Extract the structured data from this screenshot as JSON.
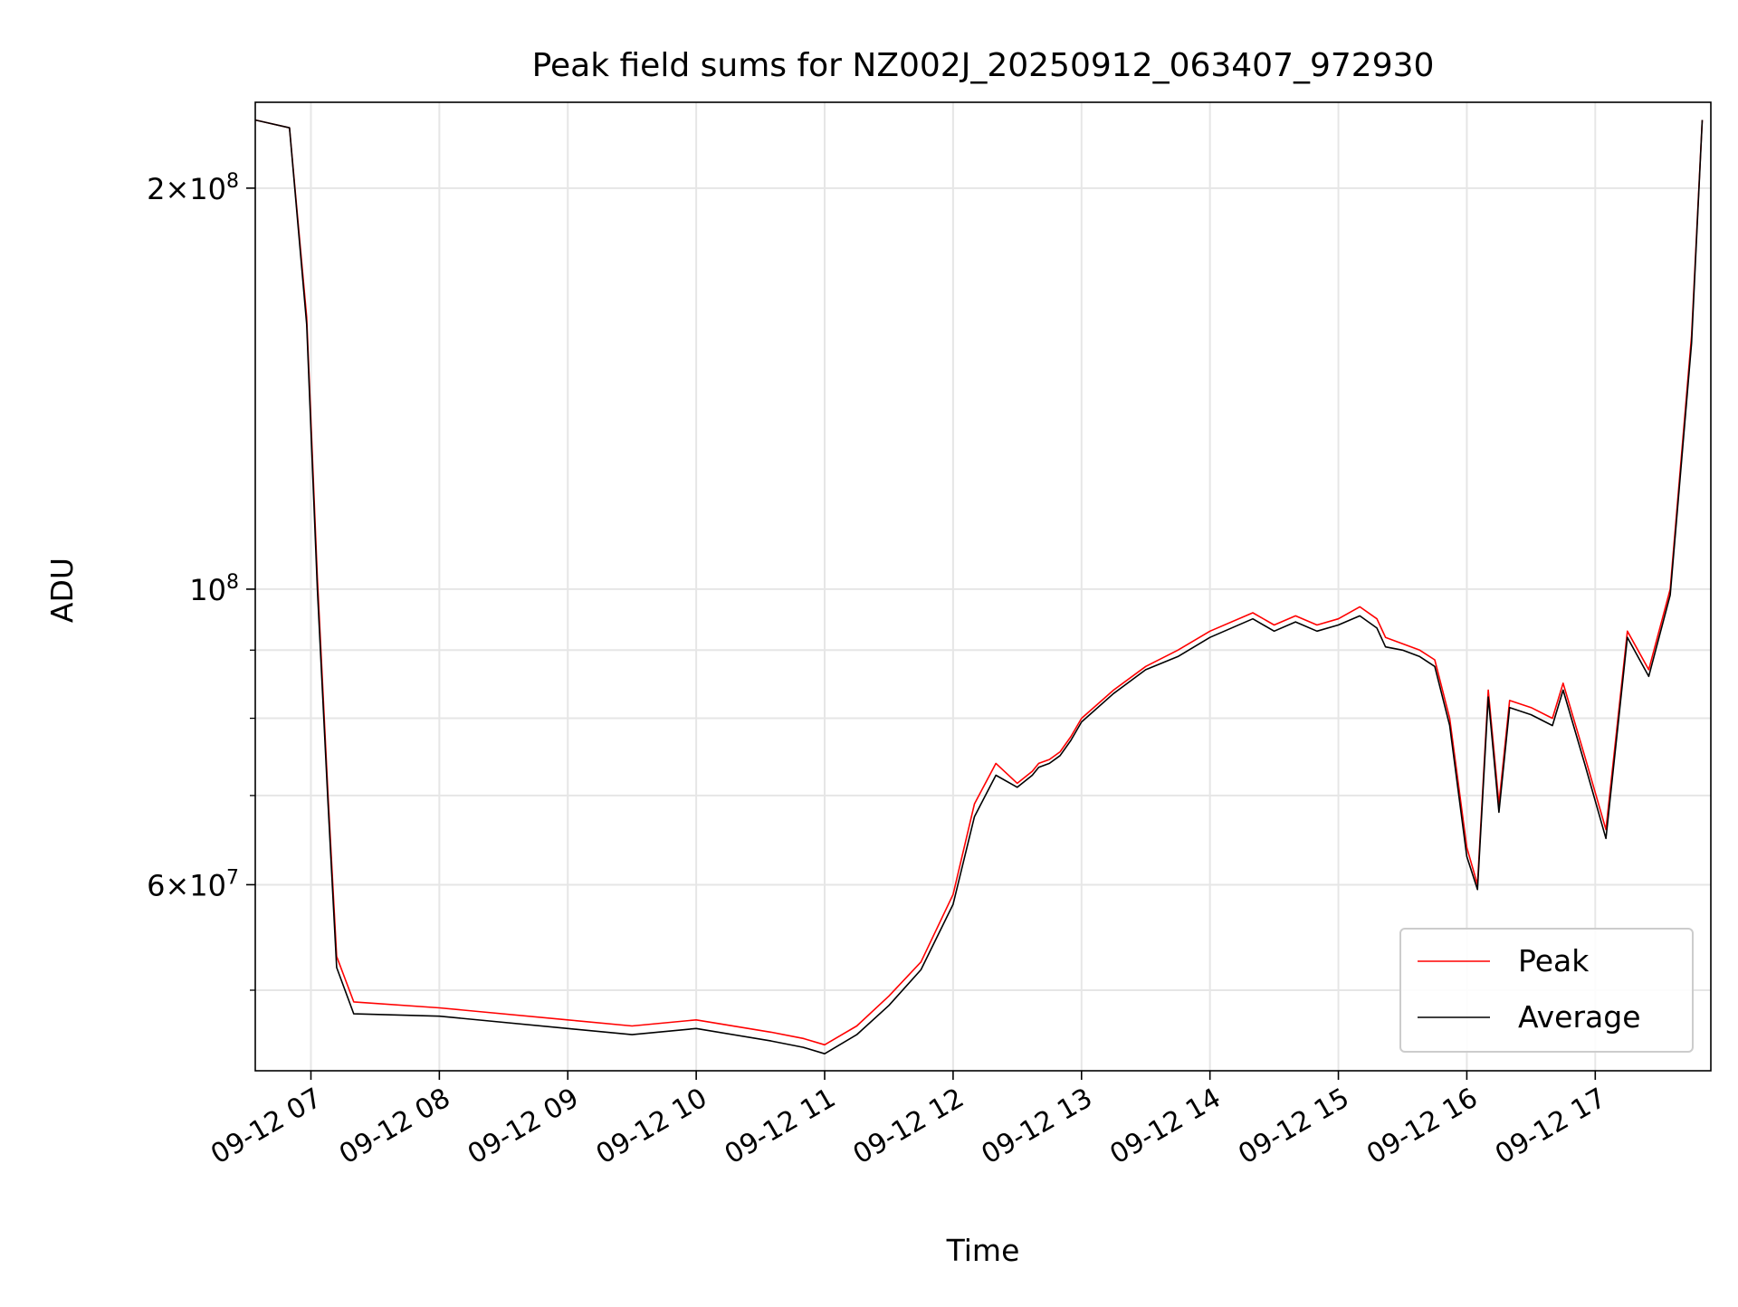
{
  "chart_data": {
    "type": "line",
    "title": "Peak field sums for NZ002J_20250912_063407_972930",
    "xlabel": "Time",
    "ylabel": "ADU",
    "yscale": "log",
    "xlim": [
      "2025-09-12 06:34",
      "2025-09-12 17:54"
    ],
    "ylim": [
      43500000,
      232000000
    ],
    "grid": true,
    "legend_position": "lower right",
    "x_tick_labels": [
      "09-12 07",
      "09-12 08",
      "09-12 09",
      "09-12 10",
      "09-12 11",
      "09-12 12",
      "09-12 13",
      "09-12 14",
      "09-12 15",
      "09-12 16",
      "09-12 17"
    ],
    "y_major_ticks": [
      {
        "value": 200000000,
        "mantissa": "2",
        "exponent": "8"
      },
      {
        "value": 100000000,
        "mantissa": "",
        "exponent": "8"
      },
      {
        "value": 60000000,
        "mantissa": "6",
        "exponent": "7"
      }
    ],
    "y_minor_ticks": [
      50000000,
      70000000,
      80000000,
      90000000
    ],
    "series": [
      {
        "name": "Peak",
        "color": "#ff0000",
        "x": [
          "2025-09-12 06:34",
          "2025-09-12 06:50",
          "2025-09-12 06:58",
          "2025-09-12 07:03",
          "2025-09-12 07:08",
          "2025-09-12 07:12",
          "2025-09-12 07:20",
          "2025-09-12 08:00",
          "2025-09-12 09:00",
          "2025-09-12 09:30",
          "2025-09-12 10:00",
          "2025-09-12 10:35",
          "2025-09-12 10:50",
          "2025-09-12 11:00",
          "2025-09-12 11:15",
          "2025-09-12 11:30",
          "2025-09-12 11:45",
          "2025-09-12 12:00",
          "2025-09-12 12:10",
          "2025-09-12 12:20",
          "2025-09-12 12:30",
          "2025-09-12 12:37",
          "2025-09-12 12:40",
          "2025-09-12 12:45",
          "2025-09-12 12:50",
          "2025-09-12 12:55",
          "2025-09-12 13:00",
          "2025-09-12 13:15",
          "2025-09-12 13:30",
          "2025-09-12 13:45",
          "2025-09-12 14:00",
          "2025-09-12 14:20",
          "2025-09-12 14:30",
          "2025-09-12 14:40",
          "2025-09-12 14:50",
          "2025-09-12 15:00",
          "2025-09-12 15:10",
          "2025-09-12 15:18",
          "2025-09-12 15:22",
          "2025-09-12 15:30",
          "2025-09-12 15:38",
          "2025-09-12 15:45",
          "2025-09-12 15:52",
          "2025-09-12 16:00",
          "2025-09-12 16:05",
          "2025-09-12 16:10",
          "2025-09-12 16:15",
          "2025-09-12 16:20",
          "2025-09-12 16:30",
          "2025-09-12 16:40",
          "2025-09-12 16:45",
          "2025-09-12 16:55",
          "2025-09-12 17:05",
          "2025-09-12 17:15",
          "2025-09-12 17:25",
          "2025-09-12 17:35",
          "2025-09-12 17:45",
          "2025-09-12 17:50"
        ],
        "y": [
          225000000,
          222000000,
          160000000,
          102000000,
          70000000,
          53000000,
          49000000,
          48500000,
          47500000,
          47000000,
          47500000,
          46500000,
          46000000,
          45500000,
          47000000,
          49500000,
          52500000,
          59000000,
          69000000,
          74000000,
          71500000,
          73000000,
          74000000,
          74500000,
          75500000,
          77500000,
          80000000,
          84000000,
          87500000,
          90000000,
          93000000,
          96000000,
          94000000,
          95500000,
          94000000,
          95000000,
          97000000,
          95000000,
          92000000,
          91000000,
          90000000,
          88500000,
          80000000,
          64000000,
          60000000,
          84000000,
          69000000,
          82500000,
          81500000,
          80000000,
          85000000,
          75000000,
          66000000,
          93000000,
          87000000,
          100000000,
          155000000,
          225000000
        ]
      },
      {
        "name": "Average",
        "color": "#000000",
        "x": [
          "2025-09-12 06:34",
          "2025-09-12 06:50",
          "2025-09-12 06:58",
          "2025-09-12 07:03",
          "2025-09-12 07:08",
          "2025-09-12 07:12",
          "2025-09-12 07:20",
          "2025-09-12 08:00",
          "2025-09-12 09:00",
          "2025-09-12 09:30",
          "2025-09-12 10:00",
          "2025-09-12 10:35",
          "2025-09-12 10:50",
          "2025-09-12 11:00",
          "2025-09-12 11:15",
          "2025-09-12 11:30",
          "2025-09-12 11:45",
          "2025-09-12 12:00",
          "2025-09-12 12:10",
          "2025-09-12 12:20",
          "2025-09-12 12:30",
          "2025-09-12 12:37",
          "2025-09-12 12:40",
          "2025-09-12 12:45",
          "2025-09-12 12:50",
          "2025-09-12 12:55",
          "2025-09-12 13:00",
          "2025-09-12 13:15",
          "2025-09-12 13:30",
          "2025-09-12 13:45",
          "2025-09-12 14:00",
          "2025-09-12 14:20",
          "2025-09-12 14:30",
          "2025-09-12 14:40",
          "2025-09-12 14:50",
          "2025-09-12 15:00",
          "2025-09-12 15:10",
          "2025-09-12 15:18",
          "2025-09-12 15:22",
          "2025-09-12 15:30",
          "2025-09-12 15:38",
          "2025-09-12 15:45",
          "2025-09-12 15:52",
          "2025-09-12 16:00",
          "2025-09-12 16:05",
          "2025-09-12 16:10",
          "2025-09-12 16:15",
          "2025-09-12 16:20",
          "2025-09-12 16:30",
          "2025-09-12 16:40",
          "2025-09-12 16:45",
          "2025-09-12 16:55",
          "2025-09-12 17:05",
          "2025-09-12 17:15",
          "2025-09-12 17:25",
          "2025-09-12 17:35",
          "2025-09-12 17:45",
          "2025-09-12 17:50"
        ],
        "y": [
          225000000,
          222000000,
          158000000,
          100000000,
          69000000,
          52000000,
          48000000,
          47800000,
          46800000,
          46300000,
          46800000,
          45800000,
          45300000,
          44800000,
          46300000,
          48700000,
          51800000,
          58000000,
          67500000,
          72500000,
          71000000,
          72500000,
          73500000,
          74000000,
          75000000,
          77000000,
          79500000,
          83500000,
          87000000,
          89000000,
          92000000,
          95000000,
          93000000,
          94500000,
          93000000,
          94000000,
          95500000,
          93500000,
          90500000,
          90000000,
          89000000,
          87500000,
          79000000,
          63000000,
          59500000,
          83000000,
          68000000,
          81500000,
          80500000,
          79000000,
          84000000,
          74000000,
          65000000,
          92000000,
          86000000,
          99000000,
          153000000,
          225000000
        ]
      }
    ]
  }
}
